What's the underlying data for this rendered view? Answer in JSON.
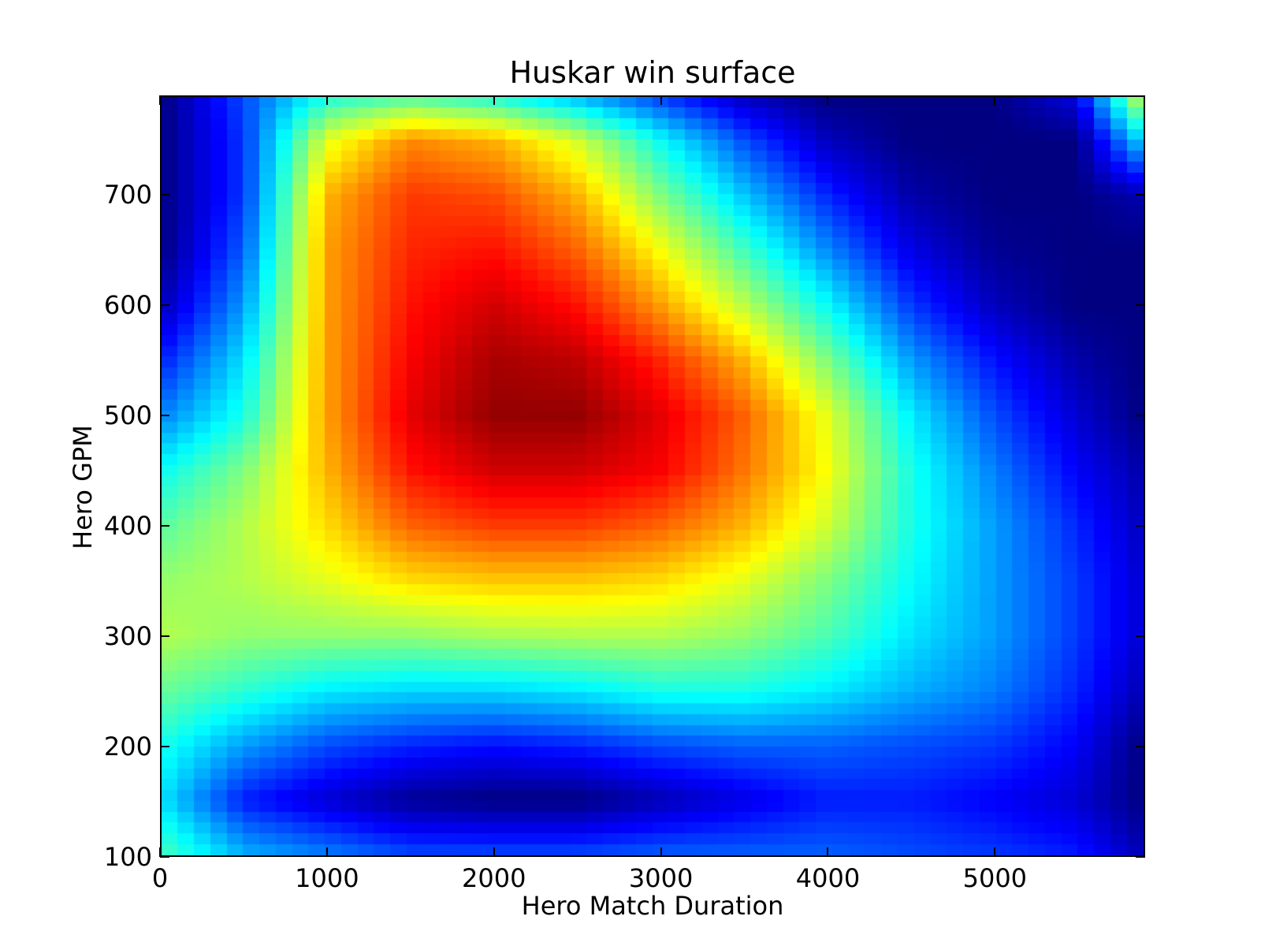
{
  "chart_data": {
    "type": "heatmap",
    "title": "Huskar win surface",
    "xlabel": "Hero Match Duration",
    "ylabel": "Hero GPM",
    "xlim": [
      0,
      5900
    ],
    "ylim": [
      100,
      790
    ],
    "xticks": [
      0,
      1000,
      2000,
      3000,
      4000,
      5000
    ],
    "yticks": [
      100,
      200,
      300,
      400,
      500,
      600,
      700
    ],
    "colormap": "jet",
    "grid": false,
    "legend": "none",
    "surface": {
      "description_values": "win value 0..1 (jet colormap, 0=dark blue, 1=dark red)",
      "peak": {
        "x": 2100,
        "y": 510,
        "value": 1.0
      },
      "grid_x": [
        0,
        500,
        1000,
        1500,
        2000,
        2500,
        3000,
        3500,
        4000,
        4500,
        5000,
        5500,
        5900
      ],
      "grid_y": [
        100,
        150,
        200,
        250,
        300,
        350,
        400,
        450,
        500,
        550,
        600,
        650,
        700,
        750,
        790
      ],
      "z": [
        [
          0.45,
          0.3,
          0.25,
          0.2,
          0.2,
          0.2,
          0.22,
          0.22,
          0.22,
          0.2,
          0.18,
          0.15,
          0.05
        ],
        [
          0.35,
          0.15,
          0.08,
          0.02,
          0.0,
          0.0,
          0.05,
          0.1,
          0.15,
          0.15,
          0.12,
          0.08,
          0.0
        ],
        [
          0.4,
          0.28,
          0.2,
          0.16,
          0.14,
          0.16,
          0.2,
          0.22,
          0.22,
          0.2,
          0.18,
          0.12,
          0.0
        ],
        [
          0.48,
          0.42,
          0.36,
          0.34,
          0.34,
          0.36,
          0.4,
          0.4,
          0.36,
          0.3,
          0.25,
          0.16,
          0.05
        ],
        [
          0.55,
          0.52,
          0.52,
          0.52,
          0.54,
          0.55,
          0.55,
          0.52,
          0.45,
          0.35,
          0.28,
          0.18,
          0.08
        ],
        [
          0.52,
          0.55,
          0.6,
          0.66,
          0.68,
          0.68,
          0.66,
          0.6,
          0.5,
          0.38,
          0.28,
          0.18,
          0.08
        ],
        [
          0.46,
          0.55,
          0.66,
          0.78,
          0.82,
          0.82,
          0.78,
          0.7,
          0.58,
          0.4,
          0.28,
          0.16,
          0.06
        ],
        [
          0.38,
          0.5,
          0.7,
          0.86,
          0.92,
          0.92,
          0.88,
          0.76,
          0.62,
          0.4,
          0.25,
          0.12,
          0.04
        ],
        [
          0.25,
          0.4,
          0.72,
          0.9,
          0.98,
          0.98,
          0.9,
          0.78,
          0.6,
          0.36,
          0.2,
          0.08,
          0.0
        ],
        [
          0.15,
          0.35,
          0.72,
          0.88,
          0.96,
          0.94,
          0.84,
          0.7,
          0.5,
          0.28,
          0.14,
          0.04,
          0.0
        ],
        [
          0.05,
          0.28,
          0.72,
          0.86,
          0.92,
          0.86,
          0.72,
          0.56,
          0.38,
          0.18,
          0.06,
          0.0,
          0.0
        ],
        [
          0.0,
          0.22,
          0.72,
          0.84,
          0.86,
          0.78,
          0.62,
          0.44,
          0.26,
          0.1,
          0.02,
          0.0,
          0.0
        ],
        [
          0.0,
          0.18,
          0.7,
          0.82,
          0.8,
          0.7,
          0.5,
          0.32,
          0.16,
          0.04,
          0.0,
          0.0,
          0.05
        ],
        [
          0.0,
          0.18,
          0.6,
          0.74,
          0.7,
          0.58,
          0.38,
          0.2,
          0.06,
          0.0,
          0.0,
          0.0,
          0.35
        ],
        [
          0.0,
          0.2,
          0.4,
          0.45,
          0.4,
          0.3,
          0.18,
          0.06,
          0.0,
          0.0,
          0.0,
          0.1,
          0.6
        ]
      ]
    }
  }
}
